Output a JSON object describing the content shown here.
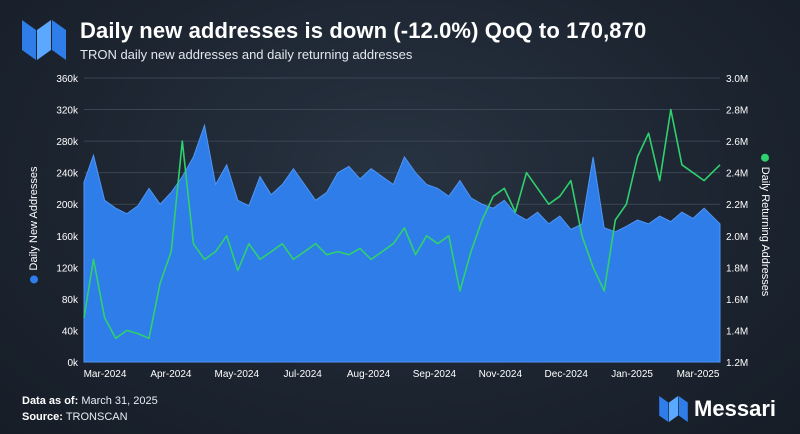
{
  "header": {
    "title": "Daily new addresses is down (-12.0%) QoQ to 170,870",
    "subtitle": "TRON daily new addresses and daily returning addresses"
  },
  "footer": {
    "data_as_of_label": "Data as of:",
    "data_as_of_value": "March 31, 2025",
    "source_label": "Source:",
    "source_value": "TRONSCAN"
  },
  "brand": {
    "name": "Messari",
    "icon": "messari-logo-icon"
  },
  "colors": {
    "new": "#2e7de9",
    "returning": "#2fd16e",
    "background": "#1c2430"
  },
  "chart_data": {
    "type": "area",
    "ylabel": "Daily New Addresses",
    "y2label": "Daily Returning Addresses",
    "ylim": [
      0,
      360000
    ],
    "y2lim": [
      1200000,
      3000000
    ],
    "y_ticks": [
      "0k",
      "40k",
      "80k",
      "120k",
      "160k",
      "200k",
      "240k",
      "280k",
      "320k",
      "360k"
    ],
    "y2_ticks": [
      "1.2M",
      "1.4M",
      "1.6M",
      "1.8M",
      "2.0M",
      "2.2M",
      "2.4M",
      "2.6M",
      "2.8M",
      "3.0M"
    ],
    "x_ticks": [
      "Mar-2024",
      "Apr-2024",
      "May-2024",
      "Jul-2024",
      "Aug-2024",
      "Sep-2024",
      "Nov-2024",
      "Dec-2024",
      "Jan-2025",
      "Mar-2025"
    ],
    "x_range": [
      "2024-02-24",
      "2025-03-31"
    ],
    "grid": true,
    "series": [
      {
        "name": "Daily New Addresses",
        "axis": "left",
        "chart": "area",
        "points": [
          [
            "2024-02-24",
            228000
          ],
          [
            "2024-03-01",
            262000
          ],
          [
            "2024-03-08",
            205000
          ],
          [
            "2024-03-15",
            195000
          ],
          [
            "2024-03-22",
            188000
          ],
          [
            "2024-03-29",
            198000
          ],
          [
            "2024-04-05",
            220000
          ],
          [
            "2024-04-12",
            200000
          ],
          [
            "2024-04-19",
            215000
          ],
          [
            "2024-04-26",
            235000
          ],
          [
            "2024-05-03",
            260000
          ],
          [
            "2024-05-10",
            300000
          ],
          [
            "2024-05-17",
            225000
          ],
          [
            "2024-05-24",
            250000
          ],
          [
            "2024-05-31",
            205000
          ],
          [
            "2024-06-07",
            198000
          ],
          [
            "2024-06-14",
            235000
          ],
          [
            "2024-06-21",
            212000
          ],
          [
            "2024-06-28",
            225000
          ],
          [
            "2024-07-05",
            245000
          ],
          [
            "2024-07-12",
            225000
          ],
          [
            "2024-07-19",
            205000
          ],
          [
            "2024-07-26",
            215000
          ],
          [
            "2024-08-02",
            240000
          ],
          [
            "2024-08-09",
            248000
          ],
          [
            "2024-08-16",
            232000
          ],
          [
            "2024-08-23",
            245000
          ],
          [
            "2024-08-30",
            235000
          ],
          [
            "2024-09-06",
            225000
          ],
          [
            "2024-09-13",
            260000
          ],
          [
            "2024-09-20",
            240000
          ],
          [
            "2024-09-27",
            225000
          ],
          [
            "2024-10-04",
            220000
          ],
          [
            "2024-10-11",
            210000
          ],
          [
            "2024-10-18",
            230000
          ],
          [
            "2024-10-25",
            208000
          ],
          [
            "2024-11-01",
            200000
          ],
          [
            "2024-11-08",
            195000
          ],
          [
            "2024-11-15",
            205000
          ],
          [
            "2024-11-22",
            188000
          ],
          [
            "2024-11-29",
            180000
          ],
          [
            "2024-12-06",
            190000
          ],
          [
            "2024-12-13",
            175000
          ],
          [
            "2024-12-20",
            185000
          ],
          [
            "2024-12-27",
            168000
          ],
          [
            "2025-01-03",
            175000
          ],
          [
            "2025-01-10",
            260000
          ],
          [
            "2025-01-17",
            170000
          ],
          [
            "2025-01-24",
            165000
          ],
          [
            "2025-01-31",
            172000
          ],
          [
            "2025-02-07",
            180000
          ],
          [
            "2025-02-14",
            175000
          ],
          [
            "2025-02-21",
            185000
          ],
          [
            "2025-02-28",
            178000
          ],
          [
            "2025-03-07",
            190000
          ],
          [
            "2025-03-14",
            182000
          ],
          [
            "2025-03-21",
            195000
          ],
          [
            "2025-03-31",
            175000
          ]
        ]
      },
      {
        "name": "Daily Returning Addresses",
        "axis": "right",
        "chart": "line",
        "points": [
          [
            "2024-02-24",
            1480000
          ],
          [
            "2024-03-01",
            1850000
          ],
          [
            "2024-03-08",
            1480000
          ],
          [
            "2024-03-15",
            1350000
          ],
          [
            "2024-03-22",
            1400000
          ],
          [
            "2024-03-29",
            1380000
          ],
          [
            "2024-04-05",
            1350000
          ],
          [
            "2024-04-12",
            1700000
          ],
          [
            "2024-04-19",
            1900000
          ],
          [
            "2024-04-26",
            2600000
          ],
          [
            "2024-05-03",
            1950000
          ],
          [
            "2024-05-10",
            1850000
          ],
          [
            "2024-05-17",
            1900000
          ],
          [
            "2024-05-24",
            2000000
          ],
          [
            "2024-05-31",
            1780000
          ],
          [
            "2024-06-07",
            1950000
          ],
          [
            "2024-06-14",
            1850000
          ],
          [
            "2024-06-21",
            1900000
          ],
          [
            "2024-06-28",
            1950000
          ],
          [
            "2024-07-05",
            1850000
          ],
          [
            "2024-07-12",
            1900000
          ],
          [
            "2024-07-19",
            1950000
          ],
          [
            "2024-07-26",
            1880000
          ],
          [
            "2024-08-02",
            1900000
          ],
          [
            "2024-08-09",
            1880000
          ],
          [
            "2024-08-16",
            1920000
          ],
          [
            "2024-08-23",
            1850000
          ],
          [
            "2024-08-30",
            1900000
          ],
          [
            "2024-09-06",
            1950000
          ],
          [
            "2024-09-13",
            2050000
          ],
          [
            "2024-09-20",
            1880000
          ],
          [
            "2024-09-27",
            2000000
          ],
          [
            "2024-10-04",
            1950000
          ],
          [
            "2024-10-11",
            2000000
          ],
          [
            "2024-10-18",
            1650000
          ],
          [
            "2024-10-25",
            1900000
          ],
          [
            "2024-11-01",
            2100000
          ],
          [
            "2024-11-08",
            2250000
          ],
          [
            "2024-11-15",
            2300000
          ],
          [
            "2024-11-22",
            2150000
          ],
          [
            "2024-11-29",
            2400000
          ],
          [
            "2024-12-06",
            2300000
          ],
          [
            "2024-12-13",
            2200000
          ],
          [
            "2024-12-20",
            2250000
          ],
          [
            "2024-12-27",
            2350000
          ],
          [
            "2025-01-03",
            2000000
          ],
          [
            "2025-01-10",
            1800000
          ],
          [
            "2025-01-17",
            1650000
          ],
          [
            "2025-01-24",
            2100000
          ],
          [
            "2025-01-31",
            2200000
          ],
          [
            "2025-02-07",
            2500000
          ],
          [
            "2025-02-14",
            2650000
          ],
          [
            "2025-02-21",
            2350000
          ],
          [
            "2025-02-28",
            2800000
          ],
          [
            "2025-03-07",
            2450000
          ],
          [
            "2025-03-14",
            2400000
          ],
          [
            "2025-03-21",
            2350000
          ],
          [
            "2025-03-31",
            2450000
          ]
        ]
      }
    ]
  }
}
